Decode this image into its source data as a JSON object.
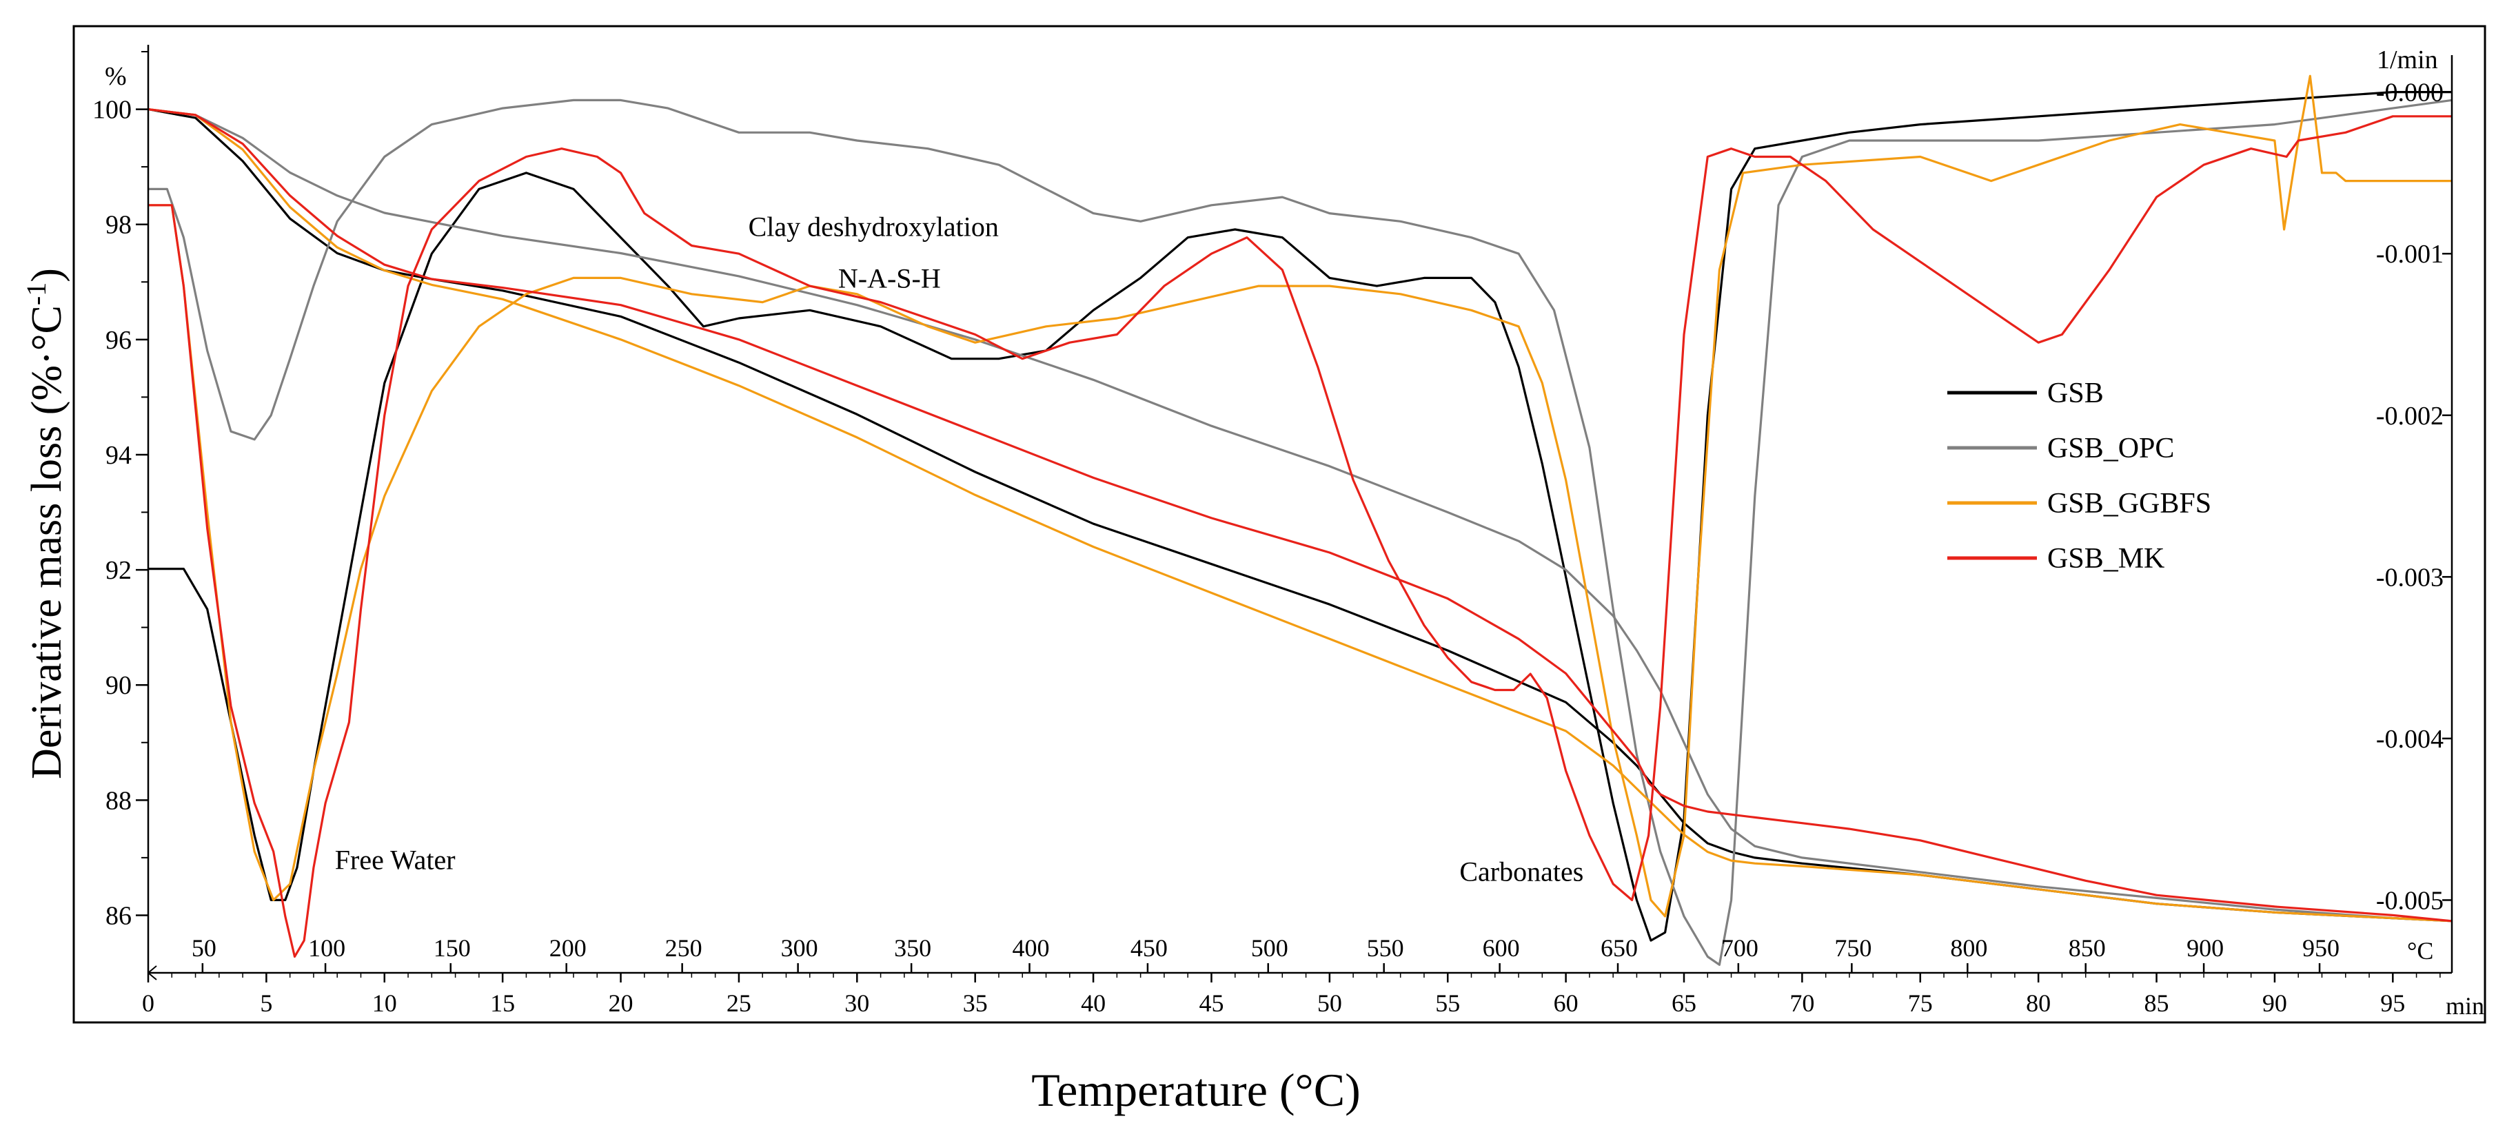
{
  "chart_data": {
    "type": "line",
    "title": "",
    "xlabel": "Temperature (°C)",
    "ylabel_main": "Derivative mass loss (%·°C",
    "ylabel_sup": "-1",
    "ylabel_close": ")",
    "left_axis_unit": "%",
    "right_axis_unit": "1/min",
    "temp_axis_unit": "°C",
    "time_axis_unit": "min",
    "ylim": [
      85,
      101
    ],
    "y_ticks": [
      86,
      88,
      90,
      92,
      94,
      96,
      98,
      100
    ],
    "y_tick_labels": [
      "86",
      "88",
      "90",
      "92",
      "94",
      "96",
      "98",
      "100"
    ],
    "y2lim": [
      -0.00545,
      0.00025
    ],
    "y2_ticks": [
      -0.005,
      -0.004,
      -0.003,
      -0.002,
      -0.001,
      0.0
    ],
    "y2_tick_labels": [
      "-0.005",
      "-0.004",
      "-0.003",
      "-0.002",
      "-0.001",
      "-0.000"
    ],
    "time_range": [
      0,
      97.5
    ],
    "time_ticks": [
      0,
      5,
      10,
      15,
      20,
      25,
      30,
      35,
      40,
      45,
      50,
      55,
      60,
      65,
      70,
      75,
      80,
      85,
      90,
      95
    ],
    "time_tick_labels": [
      "0",
      "5",
      "10",
      "15",
      "20",
      "25",
      "30",
      "35",
      "40",
      "45",
      "50",
      "55",
      "60",
      "65",
      "70",
      "75",
      "80",
      "85",
      "90",
      "95"
    ],
    "temp_ticks": [
      50,
      100,
      150,
      200,
      250,
      300,
      350,
      400,
      450,
      500,
      550,
      600,
      650,
      700,
      750,
      800,
      850,
      900,
      950
    ],
    "temp_tick_labels": [
      "50",
      "100",
      "150",
      "200",
      "250",
      "300",
      "350",
      "400",
      "450",
      "500",
      "550",
      "600",
      "650",
      "700",
      "750",
      "800",
      "850",
      "900",
      "950"
    ],
    "temp_tick_time": [
      2.3,
      7.5,
      12.8,
      17.7,
      22.6,
      27.5,
      32.3,
      37.3,
      42.3,
      47.4,
      52.3,
      57.2,
      62.2,
      67.3,
      72.1,
      77.0,
      82.0,
      87.0,
      91.9
    ],
    "annotations": [
      {
        "text": "Free Water",
        "t": 7.9,
        "y": 86.8
      },
      {
        "text": "Clay deshydroxylation",
        "t": 25.4,
        "y": 97.8
      },
      {
        "text": "N-A-S-H",
        "t": 29.2,
        "y": 96.9
      },
      {
        "text": "Carbonates",
        "t": 55.5,
        "y": 86.6
      }
    ],
    "legend_position": "right",
    "series": [
      {
        "name": "GSB",
        "color": "#000000",
        "tga_t": [
          0,
          2,
          4,
          6,
          8,
          10,
          12,
          15,
          20,
          25,
          30,
          35,
          40,
          45,
          50,
          55,
          60,
          62,
          63,
          64,
          65,
          66,
          67,
          68,
          70,
          75,
          80,
          85,
          90,
          95,
          97.5
        ],
        "tga_y": [
          100,
          99.85,
          99.1,
          98.1,
          97.5,
          97.2,
          97.05,
          96.85,
          96.4,
          95.6,
          94.7,
          93.7,
          92.8,
          92.1,
          91.4,
          90.6,
          89.7,
          89.0,
          88.6,
          88.1,
          87.6,
          87.25,
          87.1,
          87.0,
          86.9,
          86.7,
          86.45,
          86.2,
          86.05,
          85.95,
          85.9
        ],
        "dtg_t": [
          0,
          1.5,
          2.5,
          3.5,
          4.5,
          5.2,
          5.8,
          6.3,
          7,
          8,
          10,
          12,
          14,
          16,
          18,
          20,
          22,
          23.5,
          25,
          28,
          31,
          34,
          36,
          38,
          40,
          42,
          44,
          46,
          48,
          50,
          52,
          54,
          56,
          57,
          58,
          59,
          60,
          61,
          62,
          63,
          63.6,
          64.2,
          65,
          66,
          67,
          68,
          70,
          72,
          75,
          80,
          85,
          90,
          95,
          97.5
        ],
        "dtg_v": [
          -0.00295,
          -0.00295,
          -0.0032,
          -0.0039,
          -0.0046,
          -0.005,
          -0.005,
          -0.0048,
          -0.0042,
          -0.0034,
          -0.0018,
          -0.001,
          -0.0006,
          -0.0005,
          -0.0006,
          -0.0009,
          -0.0012,
          -0.00145,
          -0.0014,
          -0.00135,
          -0.00145,
          -0.00165,
          -0.00165,
          -0.0016,
          -0.00135,
          -0.00115,
          -0.0009,
          -0.00085,
          -0.0009,
          -0.00115,
          -0.0012,
          -0.00115,
          -0.00115,
          -0.0013,
          -0.0017,
          -0.0023,
          -0.003,
          -0.0037,
          -0.0044,
          -0.005,
          -0.00525,
          -0.0052,
          -0.0045,
          -0.002,
          -0.0006,
          -0.00035,
          -0.0003,
          -0.00025,
          -0.0002,
          -0.00015,
          -0.0001,
          -5e-05,
          0.0,
          0.0
        ]
      },
      {
        "name": "GSB_OPC",
        "color": "#808080",
        "tga_t": [
          0,
          2,
          4,
          6,
          8,
          10,
          15,
          20,
          25,
          30,
          35,
          40,
          45,
          50,
          55,
          58,
          60,
          62,
          63,
          64,
          65,
          66,
          67,
          68,
          70,
          72,
          75,
          80,
          85,
          90,
          95,
          97.5
        ],
        "tga_y": [
          100,
          99.9,
          99.5,
          98.9,
          98.5,
          98.2,
          97.8,
          97.5,
          97.1,
          96.6,
          96.0,
          95.3,
          94.5,
          93.8,
          93.0,
          92.5,
          92.0,
          91.2,
          90.6,
          89.9,
          89.0,
          88.1,
          87.5,
          87.2,
          87.0,
          86.9,
          86.75,
          86.5,
          86.3,
          86.1,
          85.95,
          85.9
        ],
        "dtg_t": [
          0,
          0.8,
          1.5,
          2.5,
          3.5,
          4.5,
          5.2,
          6,
          7,
          8,
          10,
          12,
          15,
          18,
          20,
          22,
          25,
          28,
          30,
          33,
          36,
          38,
          40,
          42,
          45,
          48,
          50,
          53,
          56,
          58,
          59.5,
          61,
          62,
          63,
          64,
          65,
          66,
          66.5,
          67,
          68,
          69,
          70,
          72,
          75,
          80,
          85,
          90,
          95,
          97.5
        ],
        "dtg_v": [
          -0.0006,
          -0.0006,
          -0.0009,
          -0.0016,
          -0.0021,
          -0.00215,
          -0.002,
          -0.00165,
          -0.0012,
          -0.0008,
          -0.0004,
          -0.0002,
          -0.0001,
          -5e-05,
          -5e-05,
          -0.0001,
          -0.00025,
          -0.00025,
          -0.0003,
          -0.00035,
          -0.00045,
          -0.0006,
          -0.00075,
          -0.0008,
          -0.0007,
          -0.00065,
          -0.00075,
          -0.0008,
          -0.0009,
          -0.001,
          -0.00135,
          -0.0022,
          -0.0032,
          -0.0041,
          -0.0047,
          -0.0051,
          -0.00535,
          -0.0054,
          -0.005,
          -0.0025,
          -0.0007,
          -0.0004,
          -0.0003,
          -0.0003,
          -0.0003,
          -0.00025,
          -0.0002,
          -0.0001,
          -5e-05
        ]
      },
      {
        "name": "GSB_GGBFS",
        "color": "#f39c12",
        "tga_t": [
          0,
          2,
          4,
          6,
          8,
          10,
          12,
          15,
          20,
          25,
          30,
          35,
          40,
          45,
          50,
          55,
          60,
          62,
          63,
          64,
          65,
          66,
          67,
          68,
          70,
          75,
          80,
          85,
          90,
          95,
          97.5
        ],
        "tga_y": [
          100,
          99.9,
          99.3,
          98.3,
          97.6,
          97.2,
          96.95,
          96.7,
          96.0,
          95.2,
          94.3,
          93.3,
          92.4,
          91.6,
          90.8,
          90.0,
          89.2,
          88.6,
          88.2,
          87.8,
          87.4,
          87.1,
          86.95,
          86.9,
          86.85,
          86.7,
          86.45,
          86.2,
          86.05,
          85.95,
          85.9
        ],
        "dtg_t": [
          0,
          1,
          1.5,
          2.5,
          3.5,
          4.5,
          5.3,
          6,
          7,
          8,
          9,
          10,
          12,
          14,
          16,
          18,
          20,
          23,
          26,
          28,
          30,
          33,
          35,
          38,
          41,
          44,
          47,
          50,
          53,
          56,
          58,
          59,
          60,
          61,
          62,
          63,
          63.6,
          64.2,
          65,
          65.6,
          66.5,
          67.5,
          70,
          75,
          78,
          80,
          83,
          86,
          88,
          90,
          90.4,
          91,
          91.5,
          92,
          92.6,
          93,
          95,
          97.5
        ],
        "dtg_v": [
          -0.0007,
          -0.0007,
          -0.0012,
          -0.0026,
          -0.0039,
          -0.0047,
          -0.005,
          -0.0049,
          -0.0042,
          -0.0036,
          -0.00295,
          -0.0025,
          -0.00185,
          -0.00145,
          -0.00125,
          -0.00115,
          -0.00115,
          -0.00125,
          -0.0013,
          -0.0012,
          -0.00125,
          -0.00145,
          -0.00155,
          -0.00145,
          -0.0014,
          -0.0013,
          -0.0012,
          -0.0012,
          -0.00125,
          -0.00135,
          -0.00145,
          -0.0018,
          -0.0024,
          -0.0032,
          -0.004,
          -0.0046,
          -0.005,
          -0.0051,
          -0.0046,
          -0.003,
          -0.0011,
          -0.0005,
          -0.00045,
          -0.0004,
          -0.00055,
          -0.00045,
          -0.0003,
          -0.0002,
          -0.00025,
          -0.0003,
          -0.00085,
          -0.0003,
          0.0001,
          -0.0005,
          -0.0005,
          -0.00055,
          -0.00055,
          -0.00055
        ]
      },
      {
        "name": "GSB_MK",
        "color": "#e8221a",
        "tga_t": [
          0,
          2,
          4,
          6,
          8,
          10,
          12,
          15,
          20,
          25,
          30,
          35,
          40,
          45,
          50,
          55,
          58,
          60,
          61,
          62,
          63,
          63.5,
          64,
          65,
          66,
          67,
          68,
          70,
          72,
          75,
          78,
          80,
          82,
          85,
          90,
          95,
          97.5
        ],
        "tga_y": [
          100,
          99.9,
          99.4,
          98.5,
          97.8,
          97.3,
          97.05,
          96.9,
          96.6,
          96.0,
          95.2,
          94.4,
          93.6,
          92.9,
          92.3,
          91.5,
          90.8,
          90.2,
          89.7,
          89.2,
          88.7,
          88.3,
          88.1,
          87.9,
          87.8,
          87.75,
          87.7,
          87.6,
          87.5,
          87.3,
          87.0,
          86.8,
          86.6,
          86.35,
          86.15,
          86.0,
          85.9
        ],
        "dtg_t": [
          0,
          1,
          1.5,
          2.5,
          3.5,
          4.5,
          5.3,
          5.8,
          6.2,
          6.6,
          7,
          7.5,
          8.5,
          9,
          10,
          11,
          12,
          14,
          16,
          17.5,
          19,
          20,
          21,
          23,
          25,
          28,
          31,
          33,
          35,
          37,
          39,
          41,
          43,
          45,
          46.5,
          48,
          49.5,
          51,
          52.5,
          54,
          55,
          56,
          57,
          57.8,
          58.5,
          59.2,
          60,
          61,
          62,
          62.8,
          63.5,
          64,
          65,
          66,
          67,
          68,
          69.5,
          71,
          73,
          75,
          78,
          80,
          81,
          83,
          85,
          87,
          89,
          90.5,
          91,
          93,
          95,
          97.5
        ],
        "dtg_v": [
          -0.0007,
          -0.0007,
          -0.0012,
          -0.0027,
          -0.0038,
          -0.0044,
          -0.0047,
          -0.0051,
          -0.00535,
          -0.00525,
          -0.0048,
          -0.0044,
          -0.0039,
          -0.0032,
          -0.002,
          -0.0012,
          -0.00085,
          -0.00055,
          -0.0004,
          -0.00035,
          -0.0004,
          -0.0005,
          -0.00075,
          -0.00095,
          -0.001,
          -0.0012,
          -0.0013,
          -0.0014,
          -0.0015,
          -0.00165,
          -0.00155,
          -0.0015,
          -0.0012,
          -0.001,
          -0.0009,
          -0.0011,
          -0.0017,
          -0.0024,
          -0.0029,
          -0.0033,
          -0.0035,
          -0.00365,
          -0.0037,
          -0.0037,
          -0.0036,
          -0.00375,
          -0.0042,
          -0.0046,
          -0.0049,
          -0.005,
          -0.0046,
          -0.0038,
          -0.0015,
          -0.0004,
          -0.00035,
          -0.0004,
          -0.0004,
          -0.00055,
          -0.00085,
          -0.00105,
          -0.00135,
          -0.00155,
          -0.0015,
          -0.0011,
          -0.00065,
          -0.00045,
          -0.00035,
          -0.0004,
          -0.0003,
          -0.00025,
          -0.00015,
          -0.00015
        ]
      }
    ]
  }
}
